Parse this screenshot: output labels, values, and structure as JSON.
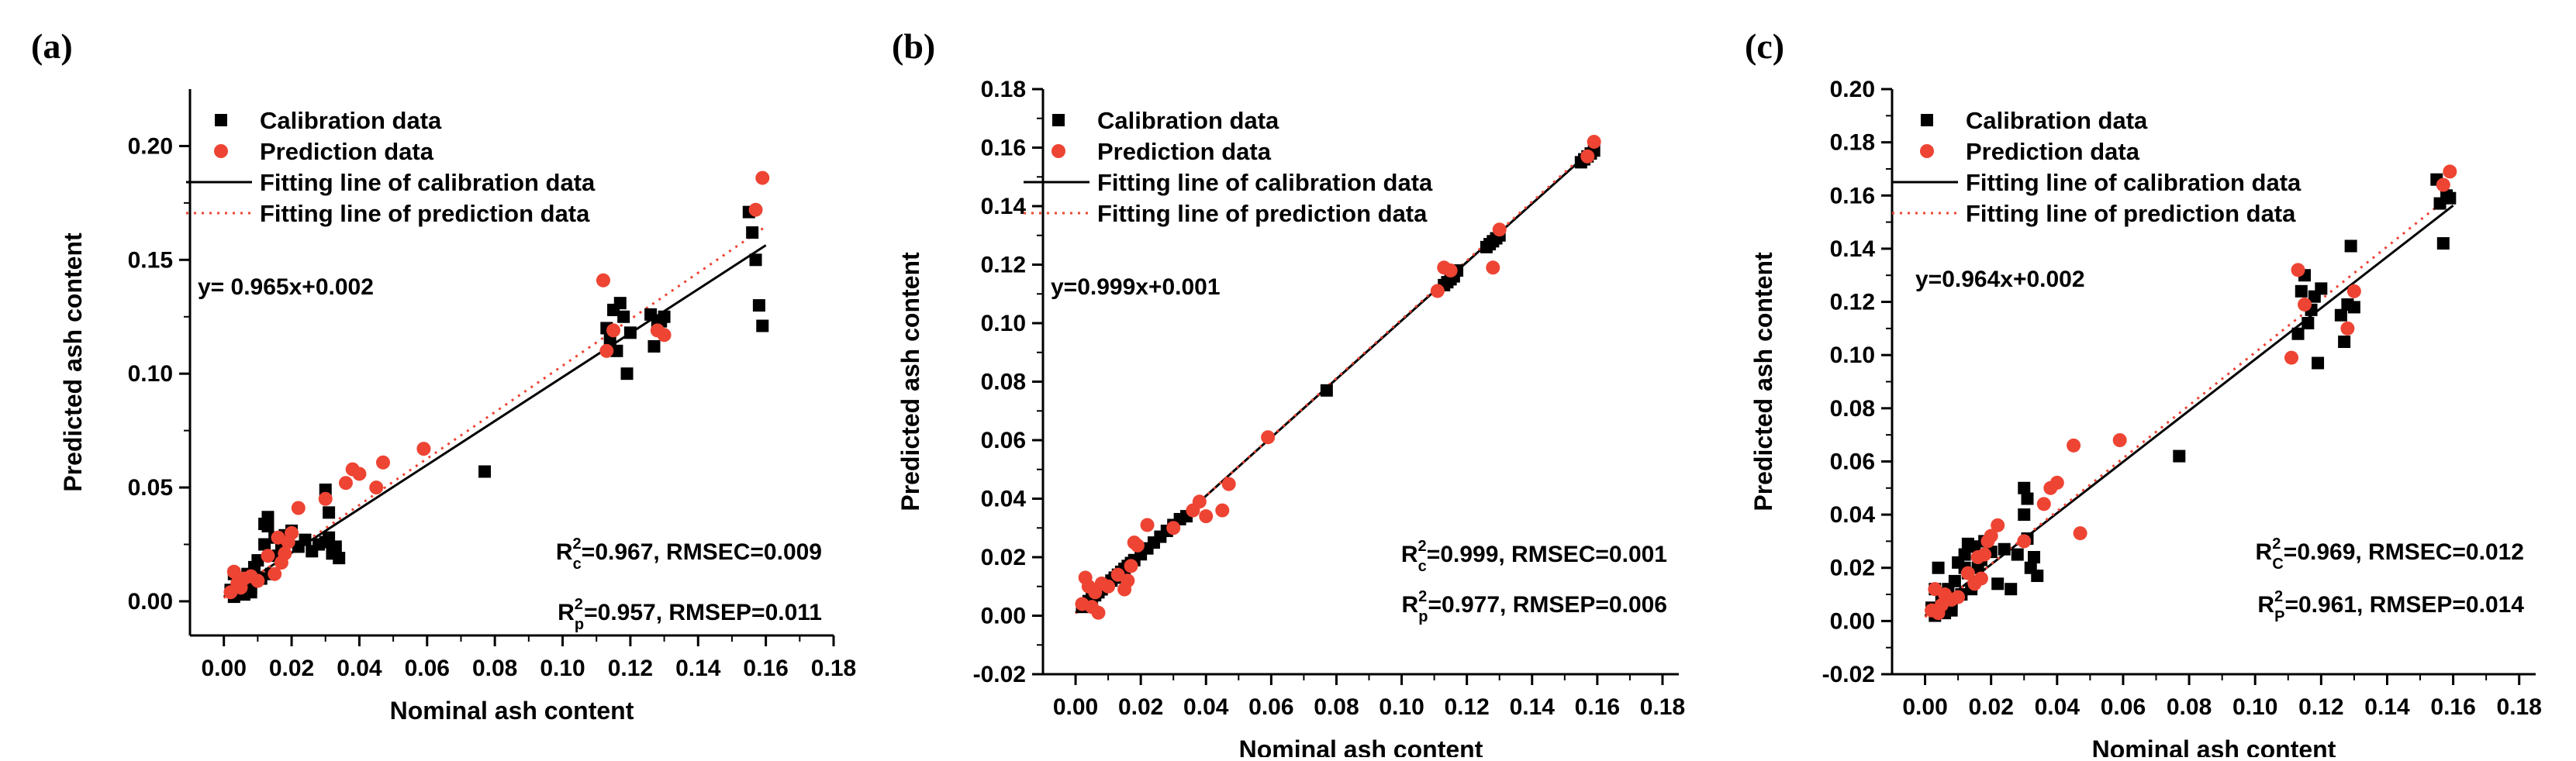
{
  "colors": {
    "calibration": "#000000",
    "prediction": "#ee4433",
    "axes": "#000000"
  },
  "legend": {
    "calibration": "Calibration data",
    "prediction": "Prediction data",
    "fit_cal": "Fitting line of calibration data",
    "fit_pred": "Fitting line of prediction data"
  },
  "chart_data": [
    {
      "type": "scatter",
      "panel": "(a)",
      "xlabel": "Nominal ash content",
      "ylabel": "Predicted ash content",
      "xlim": [
        -0.01,
        0.18
      ],
      "ylim": [
        -0.015,
        0.225
      ],
      "xticks": [
        0.0,
        0.02,
        0.04,
        0.06,
        0.08,
        0.1,
        0.12,
        0.14,
        0.16,
        0.18
      ],
      "xtick_labels": [
        "0.00",
        "0.02",
        "0.04",
        "0.06",
        "0.08",
        "0.10",
        "0.12",
        "0.14",
        "0.16",
        "0.18"
      ],
      "yticks": [
        0.0,
        0.05,
        0.1,
        0.15,
        0.2
      ],
      "ytick_labels": [
        "0.00",
        "0.05",
        "0.10",
        "0.15",
        "0.20"
      ],
      "equation": "y= 0.965x+0.002",
      "stats": [
        {
          "R": "R",
          "sup": "2",
          "sub": "c",
          "rest": "=0.967, RMSEC=0.009"
        },
        {
          "R": "R",
          "sup": "2",
          "sub": "p",
          "rest": "=0.957, RMSEP=0.011"
        }
      ],
      "fit_cal": {
        "slope": 0.965,
        "intercept": 0.002,
        "x": [
          0.0,
          0.16
        ]
      },
      "fit_pred": {
        "slope": 1.02,
        "intercept": 0.0015,
        "x": [
          0.0,
          0.16
        ]
      },
      "series": [
        {
          "name": "Calibration data",
          "x": [
            0.002,
            0.003,
            0.004,
            0.005,
            0.006,
            0.007,
            0.008,
            0.009,
            0.01,
            0.011,
            0.012,
            0.013,
            0.014,
            0.015,
            0.016,
            0.017,
            0.018,
            0.02,
            0.022,
            0.024,
            0.026,
            0.028,
            0.03,
            0.031,
            0.032,
            0.033,
            0.034,
            0.003,
            0.005,
            0.008,
            0.012,
            0.013,
            0.03,
            0.031,
            0.077,
            0.113,
            0.114,
            0.115,
            0.116,
            0.117,
            0.118,
            0.119,
            0.12,
            0.126,
            0.127,
            0.128,
            0.129,
            0.13,
            0.155,
            0.156,
            0.157,
            0.158,
            0.159
          ],
          "y": [
            0.005,
            0.002,
            0.008,
            0.01,
            0.003,
            0.012,
            0.004,
            0.015,
            0.018,
            0.01,
            0.025,
            0.037,
            0.012,
            0.028,
            0.02,
            0.023,
            0.029,
            0.031,
            0.024,
            0.027,
            0.022,
            0.025,
            0.026,
            0.028,
            0.021,
            0.024,
            0.019,
            0.012,
            0.007,
            0.006,
            0.034,
            0.033,
            0.049,
            0.039,
            0.057,
            0.12,
            0.115,
            0.128,
            0.11,
            0.131,
            0.125,
            0.1,
            0.118,
            0.126,
            0.112,
            0.121,
            0.123,
            0.125,
            0.171,
            0.162,
            0.15,
            0.13,
            0.121
          ]
        },
        {
          "name": "Prediction data",
          "x": [
            0.002,
            0.003,
            0.004,
            0.005,
            0.006,
            0.008,
            0.01,
            0.013,
            0.015,
            0.016,
            0.017,
            0.018,
            0.019,
            0.02,
            0.022,
            0.03,
            0.036,
            0.038,
            0.04,
            0.045,
            0.047,
            0.059,
            0.112,
            0.113,
            0.115,
            0.128,
            0.13,
            0.157,
            0.159
          ],
          "y": [
            0.004,
            0.013,
            0.008,
            0.006,
            0.01,
            0.011,
            0.009,
            0.02,
            0.012,
            0.028,
            0.017,
            0.021,
            0.026,
            0.03,
            0.041,
            0.045,
            0.052,
            0.058,
            0.056,
            0.05,
            0.061,
            0.067,
            0.141,
            0.11,
            0.119,
            0.119,
            0.117,
            0.172,
            0.186
          ]
        }
      ]
    },
    {
      "type": "scatter",
      "panel": "(b)",
      "xlabel": "Nominal ash content",
      "ylabel": "Predicted ash content",
      "xlim": [
        -0.01,
        0.185
      ],
      "ylim": [
        -0.02,
        0.18
      ],
      "xticks": [
        0.0,
        0.02,
        0.04,
        0.06,
        0.08,
        0.1,
        0.12,
        0.14,
        0.16,
        0.18
      ],
      "xtick_labels": [
        "0.00",
        "0.02",
        "0.04",
        "0.06",
        "0.08",
        "0.10",
        "0.12",
        "0.14",
        "0.16",
        "0.18"
      ],
      "yticks": [
        -0.02,
        0.0,
        0.02,
        0.04,
        0.06,
        0.08,
        0.1,
        0.12,
        0.14,
        0.16,
        0.18
      ],
      "ytick_labels": [
        "-0.02",
        "0.00",
        "0.02",
        "0.04",
        "0.06",
        "0.08",
        "0.10",
        "0.12",
        "0.14",
        "0.16",
        "0.18"
      ],
      "equation": "y=0.999x+0.001",
      "stats": [
        {
          "R": "R",
          "sup": "2",
          "sub": "c",
          "rest": "=0.999, RMSEC=0.001"
        },
        {
          "R": "R",
          "sup": "2",
          "sub": "p",
          "rest": "=0.977, RMSEP=0.006"
        }
      ],
      "fit_cal": {
        "slope": 0.999,
        "intercept": 0.001,
        "x": [
          0.0,
          0.16
        ]
      },
      "fit_pred": {
        "slope": 1.005,
        "intercept": 0.0008,
        "x": [
          0.0,
          0.16
        ]
      },
      "series": [
        {
          "name": "Calibration data",
          "x": [
            0.002,
            0.003,
            0.004,
            0.005,
            0.006,
            0.007,
            0.008,
            0.009,
            0.01,
            0.011,
            0.012,
            0.013,
            0.014,
            0.015,
            0.016,
            0.017,
            0.018,
            0.02,
            0.022,
            0.024,
            0.026,
            0.028,
            0.03,
            0.032,
            0.034,
            0.077,
            0.113,
            0.114,
            0.115,
            0.116,
            0.117,
            0.126,
            0.127,
            0.128,
            0.129,
            0.13,
            0.155,
            0.156,
            0.157,
            0.158,
            0.159
          ],
          "y": [
            0.003,
            0.004,
            0.005,
            0.006,
            0.007,
            0.008,
            0.009,
            0.01,
            0.011,
            0.012,
            0.013,
            0.014,
            0.015,
            0.016,
            0.017,
            0.018,
            0.019,
            0.021,
            0.023,
            0.025,
            0.027,
            0.029,
            0.031,
            0.033,
            0.034,
            0.077,
            0.113,
            0.114,
            0.115,
            0.116,
            0.118,
            0.126,
            0.127,
            0.128,
            0.129,
            0.13,
            0.155,
            0.156,
            0.157,
            0.158,
            0.159
          ]
        },
        {
          "name": "Prediction data",
          "x": [
            0.002,
            0.003,
            0.004,
            0.005,
            0.006,
            0.007,
            0.008,
            0.01,
            0.013,
            0.015,
            0.016,
            0.017,
            0.018,
            0.019,
            0.022,
            0.03,
            0.036,
            0.038,
            0.04,
            0.045,
            0.047,
            0.059,
            0.111,
            0.113,
            0.115,
            0.128,
            0.13,
            0.157,
            0.159
          ],
          "y": [
            0.004,
            0.013,
            0.01,
            0.003,
            0.008,
            0.001,
            0.011,
            0.01,
            0.014,
            0.009,
            0.012,
            0.017,
            0.025,
            0.024,
            0.031,
            0.03,
            0.036,
            0.039,
            0.034,
            0.036,
            0.045,
            0.061,
            0.111,
            0.119,
            0.118,
            0.119,
            0.132,
            0.157,
            0.162
          ]
        }
      ]
    },
    {
      "type": "scatter",
      "panel": "(c)",
      "xlabel": "Nominal ash content",
      "ylabel": "Predicted ash content",
      "xlim": [
        -0.01,
        0.185
      ],
      "ylim": [
        -0.02,
        0.2
      ],
      "xticks": [
        0.0,
        0.02,
        0.04,
        0.06,
        0.08,
        0.1,
        0.12,
        0.14,
        0.16,
        0.18
      ],
      "xtick_labels": [
        "0.00",
        "0.02",
        "0.04",
        "0.06",
        "0.08",
        "0.10",
        "0.12",
        "0.14",
        "0.16",
        "0.18"
      ],
      "yticks": [
        -0.02,
        0.0,
        0.02,
        0.04,
        0.06,
        0.08,
        0.1,
        0.12,
        0.14,
        0.16,
        0.18,
        0.2
      ],
      "ytick_labels": [
        "-0.02",
        "0.00",
        "0.02",
        "0.04",
        "0.06",
        "0.08",
        "0.10",
        "0.12",
        "0.14",
        "0.16",
        "0.18",
        "0.20"
      ],
      "equation": "y=0.964x+0.002",
      "stats": [
        {
          "R": "R",
          "sup": "2",
          "sub": "C",
          "rest": "=0.969, RMSEC=0.012"
        },
        {
          "R": "R",
          "sup": "2",
          "sub": "P",
          "rest": "=0.961, RMSEP=0.014"
        }
      ],
      "fit_cal": {
        "slope": 0.964,
        "intercept": 0.002,
        "x": [
          0.0,
          0.16
        ]
      },
      "fit_pred": {
        "slope": 0.995,
        "intercept": 0.0015,
        "x": [
          0.0,
          0.16
        ]
      },
      "series": [
        {
          "name": "Calibration data",
          "x": [
            0.002,
            0.003,
            0.004,
            0.005,
            0.006,
            0.007,
            0.008,
            0.009,
            0.01,
            0.011,
            0.012,
            0.013,
            0.014,
            0.015,
            0.016,
            0.017,
            0.018,
            0.02,
            0.022,
            0.024,
            0.026,
            0.028,
            0.03,
            0.031,
            0.032,
            0.033,
            0.034,
            0.003,
            0.005,
            0.008,
            0.012,
            0.013,
            0.03,
            0.031,
            0.077,
            0.113,
            0.114,
            0.115,
            0.116,
            0.117,
            0.118,
            0.119,
            0.12,
            0.126,
            0.127,
            0.128,
            0.129,
            0.13,
            0.155,
            0.156,
            0.157,
            0.158,
            0.159
          ],
          "y": [
            0.005,
            0.002,
            0.02,
            0.01,
            0.003,
            0.012,
            0.004,
            0.015,
            0.022,
            0.01,
            0.025,
            0.029,
            0.012,
            0.028,
            0.02,
            0.023,
            0.03,
            0.026,
            0.014,
            0.027,
            0.012,
            0.025,
            0.05,
            0.046,
            0.02,
            0.024,
            0.017,
            0.012,
            0.007,
            0.006,
            0.02,
            0.018,
            0.04,
            0.031,
            0.062,
            0.108,
            0.124,
            0.13,
            0.112,
            0.117,
            0.122,
            0.097,
            0.125,
            0.115,
            0.105,
            0.119,
            0.141,
            0.118,
            0.166,
            0.157,
            0.142,
            0.16,
            0.159
          ]
        },
        {
          "name": "Prediction data",
          "x": [
            0.002,
            0.003,
            0.004,
            0.005,
            0.006,
            0.008,
            0.01,
            0.013,
            0.015,
            0.016,
            0.017,
            0.018,
            0.019,
            0.02,
            0.022,
            0.03,
            0.036,
            0.038,
            0.04,
            0.045,
            0.047,
            0.059,
            0.111,
            0.113,
            0.115,
            0.128,
            0.13,
            0.157,
            0.159
          ],
          "y": [
            0.004,
            0.012,
            0.003,
            0.006,
            0.01,
            0.008,
            0.009,
            0.018,
            0.014,
            0.024,
            0.016,
            0.025,
            0.03,
            0.032,
            0.036,
            0.03,
            0.044,
            0.05,
            0.052,
            0.066,
            0.033,
            0.068,
            0.099,
            0.132,
            0.119,
            0.11,
            0.124,
            0.164,
            0.169
          ]
        }
      ]
    }
  ]
}
